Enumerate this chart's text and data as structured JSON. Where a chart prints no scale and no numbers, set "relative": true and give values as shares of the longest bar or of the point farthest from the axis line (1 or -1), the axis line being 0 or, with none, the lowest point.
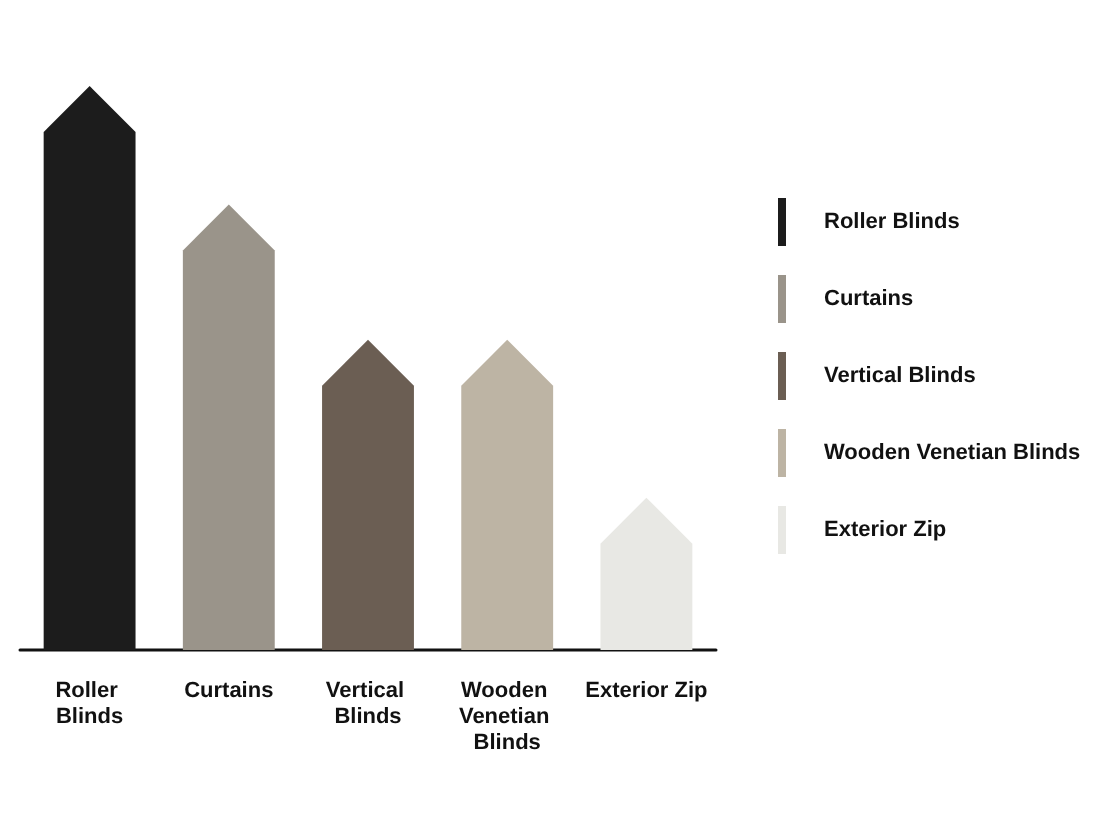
{
  "chart_data": {
    "type": "bar",
    "relative": true,
    "categories": [
      "Roller Blinds",
      "Curtains",
      "Vertical Blinds",
      "Wooden Venetian Blinds",
      "Exterior Zip"
    ],
    "series": [
      {
        "name": "Roller Blinds",
        "color": "#1c1c1c",
        "values": [
          1,
          null,
          null,
          null,
          null
        ]
      },
      {
        "name": "Curtains",
        "color": "#9a948a",
        "values": [
          null,
          0.79,
          null,
          null,
          null
        ]
      },
      {
        "name": "Vertical Blinds",
        "color": "#6b5e53",
        "values": [
          null,
          null,
          0.55,
          null,
          null
        ]
      },
      {
        "name": "Wooden Venetian Blinds",
        "color": "#bdb4a4",
        "values": [
          null,
          null,
          null,
          0.55,
          null
        ]
      },
      {
        "name": "Exterior Zip",
        "color": "#e8e8e4",
        "values": [
          null,
          null,
          null,
          null,
          0.27
        ]
      }
    ],
    "legend": "right",
    "grid": false
  }
}
